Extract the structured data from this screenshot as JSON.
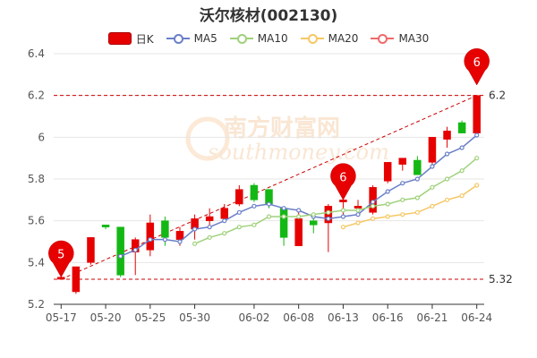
{
  "title": "沃尔核材(002130)",
  "legend": [
    {
      "label": "日K",
      "type": "kline",
      "color": "#e60000"
    },
    {
      "label": "MA5",
      "type": "line",
      "color": "#6a7fc8"
    },
    {
      "label": "MA10",
      "type": "line",
      "color": "#9fd17b"
    },
    {
      "label": "MA20",
      "type": "line",
      "color": "#f6c765"
    },
    {
      "label": "MA30",
      "type": "line",
      "color": "#ee6a6a"
    }
  ],
  "watermark": "南方财富网",
  "watermark_sub": "southmoney.com",
  "colors": {
    "up": "#e60000",
    "down": "#14b814",
    "grid": "#e6e6e6",
    "ref": "#cc0000"
  },
  "chart_data": {
    "type": "candlestick",
    "title": "沃尔核材(002130)",
    "ylim": [
      5.2,
      6.4
    ],
    "yticks": [
      "5.2",
      "5.4",
      "5.6",
      "5.8",
      "6",
      "6.2",
      "6.4"
    ],
    "xticks": [
      {
        "index": 0,
        "label": "05-17"
      },
      {
        "index": 3,
        "label": "05-20"
      },
      {
        "index": 6,
        "label": "05-25"
      },
      {
        "index": 9,
        "label": "05-30"
      },
      {
        "index": 13,
        "label": "06-02"
      },
      {
        "index": 16,
        "label": "06-08"
      },
      {
        "index": 19,
        "label": "06-13"
      },
      {
        "index": 22,
        "label": "06-16"
      },
      {
        "index": 25,
        "label": "06-21"
      },
      {
        "index": 28,
        "label": "06-24"
      }
    ],
    "ohlc": [
      [
        5.32,
        5.35,
        5.32,
        5.33
      ],
      [
        5.26,
        5.38,
        5.25,
        5.38
      ],
      [
        5.4,
        5.52,
        5.39,
        5.52
      ],
      [
        5.58,
        5.58,
        5.56,
        5.57
      ],
      [
        5.57,
        5.57,
        5.33,
        5.34
      ],
      [
        5.45,
        5.52,
        5.34,
        5.51
      ],
      [
        5.46,
        5.63,
        5.43,
        5.59
      ],
      [
        5.6,
        5.62,
        5.48,
        5.52
      ],
      [
        5.51,
        5.57,
        5.48,
        5.55
      ],
      [
        5.56,
        5.63,
        5.51,
        5.61
      ],
      [
        5.6,
        5.66,
        5.57,
        5.62
      ],
      [
        5.61,
        5.68,
        5.6,
        5.66
      ],
      [
        5.68,
        5.77,
        5.67,
        5.75
      ],
      [
        5.77,
        5.78,
        5.69,
        5.7
      ],
      [
        5.75,
        5.75,
        5.66,
        5.68
      ],
      [
        5.66,
        5.66,
        5.48,
        5.52
      ],
      [
        5.48,
        5.64,
        5.48,
        5.61
      ],
      [
        5.6,
        5.64,
        5.54,
        5.58
      ],
      [
        5.59,
        5.68,
        5.45,
        5.67
      ],
      [
        5.69,
        5.73,
        5.62,
        5.7
      ],
      [
        5.66,
        5.7,
        5.62,
        5.67
      ],
      [
        5.64,
        5.77,
        5.63,
        5.76
      ],
      [
        5.79,
        5.87,
        5.78,
        5.88
      ],
      [
        5.87,
        5.9,
        5.84,
        5.9
      ],
      [
        5.89,
        5.91,
        5.82,
        5.82
      ],
      [
        5.88,
        6.0,
        5.87,
        6.0
      ],
      [
        5.99,
        6.05,
        5.95,
        6.03
      ],
      [
        6.07,
        6.08,
        6.02,
        6.02
      ],
      [
        6.02,
        6.2,
        6.01,
        6.2
      ]
    ],
    "ma5": [
      null,
      null,
      null,
      null,
      5.43,
      5.46,
      5.51,
      5.51,
      5.5,
      5.56,
      5.57,
      5.6,
      5.64,
      5.67,
      5.68,
      5.66,
      5.65,
      5.62,
      5.61,
      5.62,
      5.63,
      5.69,
      5.74,
      5.78,
      5.8,
      5.86,
      5.92,
      5.95,
      6.01
    ],
    "ma10": [
      null,
      null,
      null,
      null,
      null,
      null,
      null,
      null,
      null,
      5.49,
      5.52,
      5.54,
      5.57,
      5.58,
      5.62,
      5.62,
      5.62,
      5.63,
      5.64,
      5.65,
      5.65,
      5.67,
      5.68,
      5.7,
      5.71,
      5.76,
      5.8,
      5.84,
      5.9
    ],
    "ma20": [
      null,
      null,
      null,
      null,
      null,
      null,
      null,
      null,
      null,
      null,
      null,
      null,
      null,
      null,
      null,
      null,
      null,
      null,
      null,
      5.57,
      5.59,
      5.61,
      5.62,
      5.63,
      5.64,
      5.67,
      5.7,
      5.72,
      5.77
    ],
    "ref_high": {
      "value": 6.2,
      "label": "6.2"
    },
    "ref_low": {
      "value": 5.32,
      "label": "5.32"
    },
    "pins": [
      {
        "index": 0,
        "value": 5.33,
        "label": "5"
      },
      {
        "index": 19,
        "value": 5.7,
        "label": "6"
      },
      {
        "index": 28,
        "value": 6.25,
        "label": "6"
      }
    ]
  }
}
